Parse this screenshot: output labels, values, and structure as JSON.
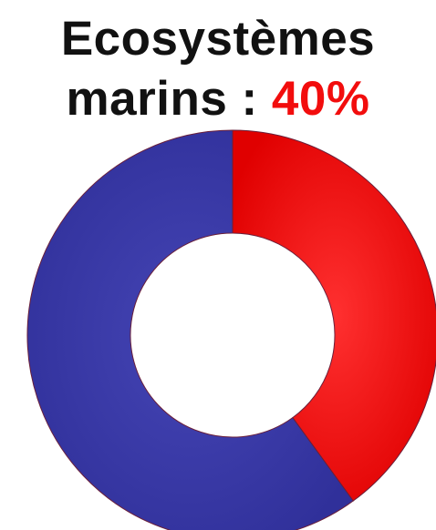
{
  "title": {
    "line1": "Ecosystèmes",
    "line2_text": "marins : ",
    "line2_value": "40%"
  },
  "colors": {
    "highlight": "#ff0000",
    "rest": "#3a3aa6",
    "title_text": "#111111",
    "title_value": "#f20d0d"
  },
  "chart_data": {
    "type": "pie",
    "variant": "donut",
    "title": "Ecosystèmes marins : 40%",
    "slices": [
      {
        "label": "",
        "value": 40,
        "color": "#ff0000"
      },
      {
        "label": "",
        "value": 60,
        "color": "#3a3aa6"
      }
    ],
    "start": "top",
    "direction": "clockwise"
  }
}
